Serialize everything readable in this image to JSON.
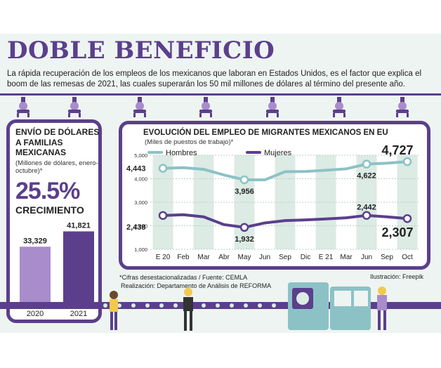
{
  "title": "DOBLE BENEFICIO",
  "intro": "La rápida recuperación de los empleos de los mexicanos que laboran en Estados Unidos, es el factor que explica el boom de las remesas de 2021, las cuales superarán los 50 mil millones de dólares al término del presente año.",
  "left_panel": {
    "heading": "ENVÍO DE DÓLARES A FAMILIAS MEXICANAS",
    "subheading": "(Millones de dólares, enero-octubre)*",
    "growth_value": "25.5%",
    "growth_label": "CRECIMIENTO"
  },
  "right_panel": {
    "title": "EVOLUCIÓN DEL EMPLEO DE MIGRANTES MEXICANOS EN EU",
    "subtitle": "(Miles de puestos de trabajo)*"
  },
  "footnote": {
    "line1": "*Cifras desestacionalizadas / Fuente: CEMLA",
    "line2": "Realización: Departamento de Análisis de REFORMA"
  },
  "credit": "Ilustración: Freepik",
  "colors": {
    "purple": "#5b3f8c",
    "light_purple": "#a98ccc",
    "teal": "#8cc2c6",
    "grid_band": "#dcebe4",
    "background": "#eef4f2"
  },
  "chart_data": [
    {
      "type": "bar",
      "categories": [
        "2020",
        "2021"
      ],
      "values": [
        33329,
        41821
      ],
      "value_labels": [
        "33,329",
        "41,821"
      ],
      "colors": [
        "#a98ccc",
        "#5b3f8c"
      ]
    },
    {
      "type": "line",
      "x": [
        "E 20",
        "Feb",
        "Mar",
        "Abr",
        "May",
        "Jun",
        "Sep",
        "Dic",
        "E 21",
        "Mar",
        "Jun",
        "Sep",
        "Oct"
      ],
      "ylim": [
        1000,
        5000
      ],
      "yticks": [
        "1,000",
        "2,000",
        "3,000",
        "4,000",
        "5,000"
      ],
      "series": [
        {
          "name": "Hombres",
          "color": "#8cc2c6",
          "values": [
            4443,
            4470,
            4400,
            4160,
            3956,
            3950,
            4300,
            4310,
            4360,
            4420,
            4622,
            4660,
            4727
          ],
          "labels": {
            "0": "4,443",
            "4": "3,956",
            "10": "4,622",
            "12": "4,727"
          }
        },
        {
          "name": "Mujeres",
          "color": "#5b3f8c",
          "values": [
            2438,
            2470,
            2380,
            2050,
            1932,
            2120,
            2220,
            2250,
            2290,
            2340,
            2442,
            2380,
            2307
          ],
          "labels": {
            "0": "2,438",
            "4": "1,932",
            "10": "2,442",
            "12": "2,307"
          }
        }
      ]
    }
  ]
}
